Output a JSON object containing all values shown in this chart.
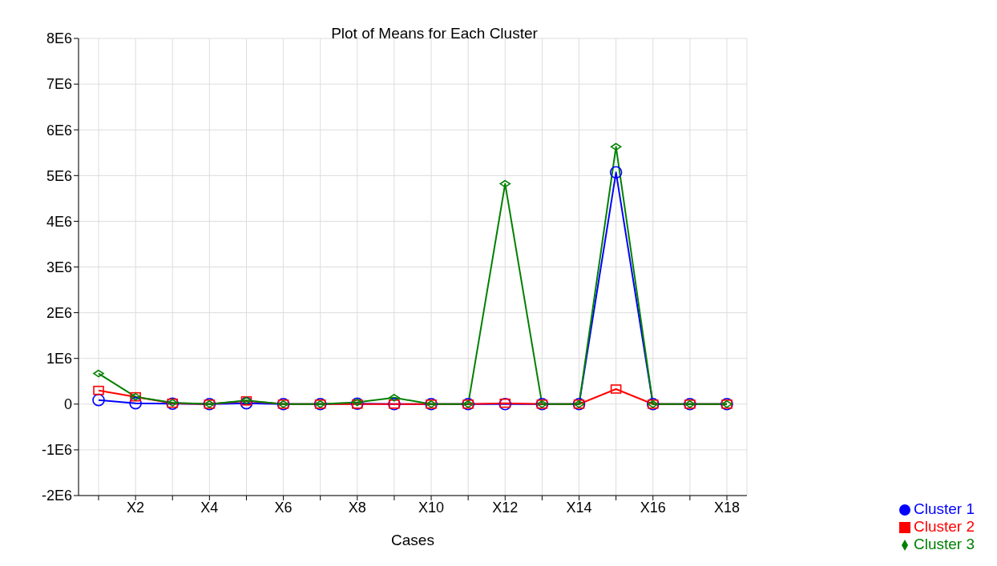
{
  "chart_data": {
    "type": "line",
    "title": "Plot of Means for Each Cluster",
    "xlabel": "Cases",
    "categories": [
      null,
      "X2",
      null,
      "X4",
      null,
      "X6",
      null,
      "X8",
      null,
      "X10",
      null,
      "X12",
      null,
      "X14",
      null,
      "X16",
      null,
      "X18"
    ],
    "series": [
      {
        "name": "Cluster  1",
        "color": "#0000ff",
        "marker": "circle",
        "values": [
          90000,
          20000,
          10000,
          0,
          20000,
          0,
          0,
          10000,
          0,
          0,
          0,
          0,
          0,
          0,
          5070000,
          0,
          0,
          0
        ]
      },
      {
        "name": "Cluster  2",
        "color": "#ff0000",
        "marker": "square",
        "values": [
          300000,
          160000,
          20000,
          0,
          70000,
          0,
          0,
          0,
          0,
          0,
          0,
          20000,
          0,
          0,
          330000,
          0,
          0,
          0
        ]
      },
      {
        "name": "Cluster  3",
        "color": "#008000",
        "marker": "diamond",
        "values": [
          670000,
          160000,
          30000,
          0,
          80000,
          0,
          0,
          40000,
          140000,
          0,
          0,
          4820000,
          0,
          0,
          5630000,
          0,
          0,
          0
        ]
      }
    ],
    "ylim": [
      -2000000,
      8000000
    ],
    "yticks": [
      {
        "value": -2000000,
        "label": "-2E6"
      },
      {
        "value": -1000000,
        "label": "-1E6"
      },
      0,
      {
        "value": 1000000,
        "label": "1E6"
      },
      {
        "value": 2000000,
        "label": "2E6"
      },
      {
        "value": 3000000,
        "label": "3E6"
      },
      {
        "value": 4000000,
        "label": "4E6"
      },
      {
        "value": 5000000,
        "label": "5E6"
      },
      {
        "value": 6000000,
        "label": "6E6"
      },
      {
        "value": 7000000,
        "label": "7E6"
      },
      {
        "value": 8000000,
        "label": "8E6"
      }
    ],
    "grid": true,
    "legend": "bottom right",
    "line_style": "solid"
  }
}
